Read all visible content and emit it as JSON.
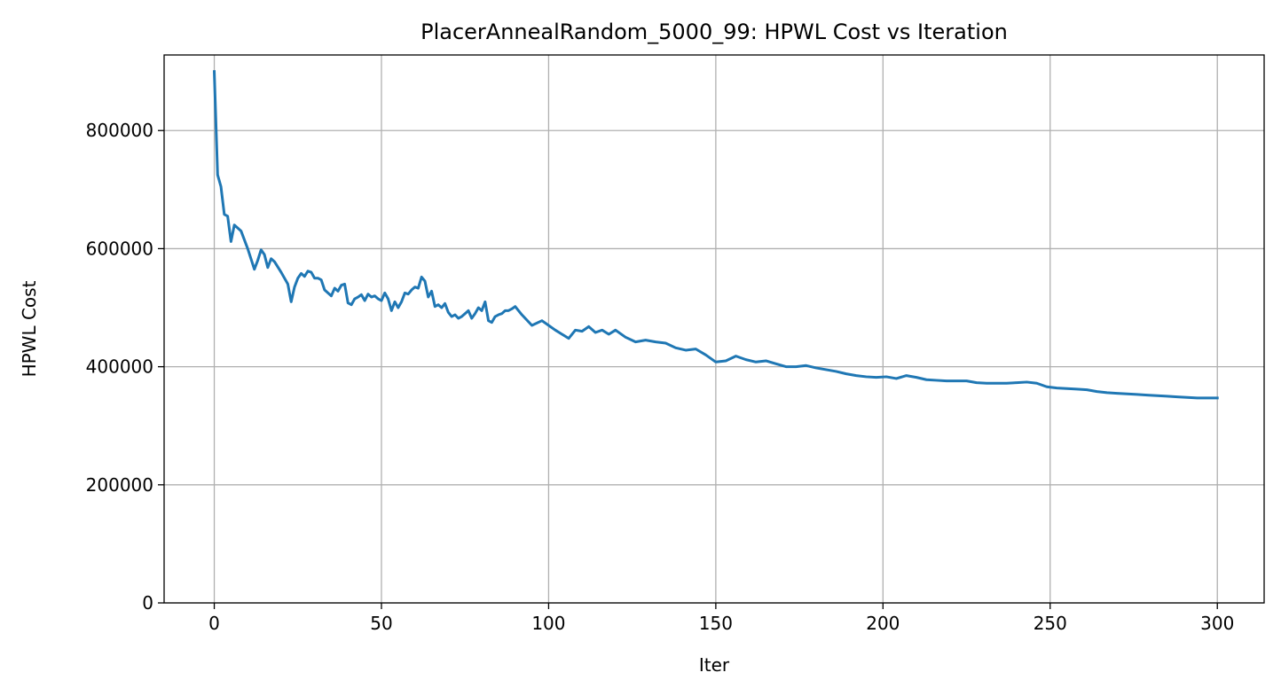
{
  "chart_data": {
    "type": "line",
    "title": "PlacerAnnealRandom_5000_99: HPWL Cost vs Iteration",
    "xlabel": "Iter",
    "ylabel": "HPWL Cost",
    "xlim": [
      -15,
      314
    ],
    "ylim": [
      0,
      928000
    ],
    "xticks": [
      0,
      50,
      100,
      150,
      200,
      250,
      300
    ],
    "yticks": [
      0,
      200000,
      400000,
      600000,
      800000
    ],
    "xtick_labels": [
      "0",
      "50",
      "100",
      "150",
      "200",
      "250",
      "300"
    ],
    "ytick_labels": [
      "0",
      "200000",
      "400000",
      "600000",
      "800000"
    ],
    "grid": true,
    "line_color": "#1f77b4",
    "series": [
      {
        "x": [
          0,
          1,
          2,
          3,
          4,
          5,
          6,
          8,
          10,
          12,
          13,
          14,
          15,
          16,
          17,
          18,
          20,
          22,
          23,
          24,
          25,
          26,
          27,
          28,
          29,
          30,
          31,
          32,
          33,
          34,
          35,
          36,
          37,
          38,
          39,
          40,
          41,
          42,
          43,
          44,
          45,
          46,
          47,
          48,
          49,
          50,
          51,
          52,
          53,
          54,
          55,
          56,
          57,
          58,
          59,
          60,
          61,
          62,
          63,
          64,
          65,
          66,
          67,
          68,
          69,
          70,
          71,
          72,
          73,
          74,
          75,
          76,
          77,
          78,
          79,
          80,
          81,
          82,
          83,
          84,
          85,
          86,
          87,
          88,
          89,
          90,
          92,
          95,
          98,
          100,
          102,
          104,
          106,
          108,
          110,
          112,
          114,
          116,
          118,
          120,
          123,
          126,
          129,
          132,
          135,
          138,
          141,
          144,
          147,
          150,
          153,
          156,
          159,
          162,
          165,
          168,
          171,
          174,
          177,
          180,
          183,
          186,
          189,
          192,
          195,
          198,
          201,
          204,
          207,
          210,
          213,
          216,
          219,
          222,
          225,
          228,
          231,
          234,
          237,
          240,
          243,
          246,
          249,
          252,
          255,
          258,
          261,
          264,
          267,
          270,
          273,
          276,
          279,
          282,
          285,
          288,
          291,
          294,
          297,
          300
        ],
        "values": [
          900000,
          725000,
          705000,
          658000,
          655000,
          612000,
          640000,
          630000,
          600000,
          565000,
          580000,
          598000,
          590000,
          568000,
          583000,
          578000,
          560000,
          540000,
          510000,
          535000,
          550000,
          558000,
          553000,
          562000,
          560000,
          550000,
          550000,
          547000,
          530000,
          525000,
          520000,
          533000,
          528000,
          538000,
          540000,
          508000,
          505000,
          515000,
          518000,
          522000,
          512000,
          523000,
          518000,
          520000,
          515000,
          512000,
          525000,
          515000,
          495000,
          510000,
          500000,
          510000,
          525000,
          523000,
          530000,
          535000,
          533000,
          552000,
          545000,
          518000,
          528000,
          502000,
          505000,
          500000,
          507000,
          492000,
          485000,
          488000,
          482000,
          485000,
          490000,
          495000,
          482000,
          490000,
          500000,
          495000,
          510000,
          478000,
          475000,
          485000,
          488000,
          490000,
          495000,
          495000,
          498000,
          502000,
          488000,
          470000,
          478000,
          470000,
          462000,
          455000,
          448000,
          462000,
          460000,
          468000,
          458000,
          462000,
          455000,
          462000,
          450000,
          442000,
          445000,
          442000,
          440000,
          432000,
          428000,
          430000,
          420000,
          408000,
          410000,
          418000,
          412000,
          408000,
          410000,
          405000,
          400000,
          400000,
          402000,
          398000,
          395000,
          392000,
          388000,
          385000,
          383000,
          382000,
          383000,
          380000,
          385000,
          382000,
          378000,
          377000,
          376000,
          376000,
          376000,
          373000,
          372000,
          372000,
          372000,
          373000,
          374000,
          372000,
          366000,
          364000,
          363000,
          362000,
          361000,
          358000,
          356000,
          355000,
          354000,
          353000,
          352000,
          351000,
          350000,
          349000,
          348000,
          347000,
          347000,
          347000
        ]
      }
    ]
  }
}
